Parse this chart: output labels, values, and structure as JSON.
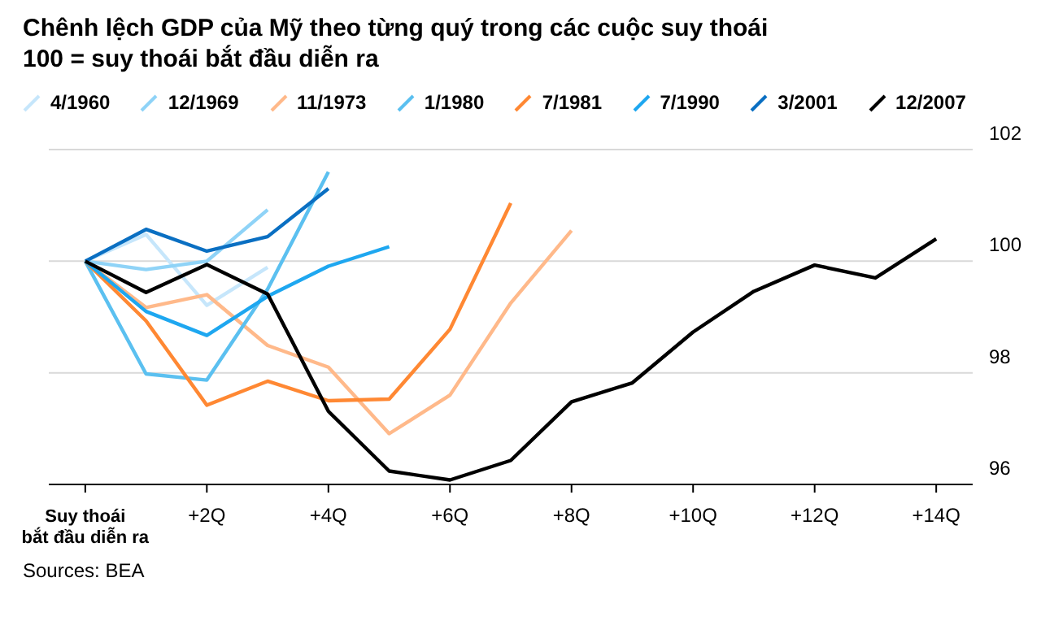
{
  "chart_data": {
    "type": "line",
    "title": "Chênh lệch GDP của Mỹ theo từng quý trong các cuộc suy thoái",
    "subtitle": "100 = suy thoái bắt đầu diễn ra",
    "annotations": [
      "Sources: BEA"
    ],
    "xlim": [
      -0.6,
      14.6
    ],
    "xticks": [
      {
        "value": 0,
        "label": "Suy thoái\nbắt đầu diễn ra"
      },
      {
        "value": 2,
        "label": "+2Q"
      },
      {
        "value": 4,
        "label": "+4Q"
      },
      {
        "value": 6,
        "label": "+6Q"
      },
      {
        "value": 8,
        "label": "+8Q"
      },
      {
        "value": 10,
        "label": "+10Q"
      },
      {
        "value": 12,
        "label": "+12Q"
      },
      {
        "value": 14,
        "label": "+14Q"
      }
    ],
    "ylim": [
      96,
      102
    ],
    "yticks": [
      96,
      98,
      100,
      102
    ],
    "grid": "y",
    "legend": "top",
    "marker": "none",
    "line_style": "solid",
    "series": [
      {
        "name": "4/1960",
        "color": "#c6e6fb",
        "x": [
          0,
          1,
          2,
          3
        ],
        "values": [
          100,
          100.48,
          99.21,
          99.89
        ]
      },
      {
        "name": "12/1969",
        "color": "#8fd3f7",
        "x": [
          0,
          1,
          2,
          3
        ],
        "values": [
          100,
          99.85,
          100,
          100.92
        ]
      },
      {
        "name": "11/1973",
        "color": "#ffb98a",
        "x": [
          0,
          1,
          2,
          3,
          4,
          5,
          6,
          7,
          8
        ],
        "values": [
          100,
          99.17,
          99.4,
          98.49,
          98.1,
          96.91,
          97.6,
          99.25,
          100.55
        ]
      },
      {
        "name": "1/1980",
        "color": "#5bc0f0",
        "x": [
          0,
          1,
          2,
          3,
          4
        ],
        "values": [
          100,
          97.98,
          97.87,
          99.5,
          101.6
        ]
      },
      {
        "name": "7/1981",
        "color": "#ff8833",
        "x": [
          0,
          1,
          2,
          3,
          4,
          5,
          6,
          7
        ],
        "values": [
          100,
          98.93,
          97.42,
          97.85,
          97.5,
          97.53,
          98.78,
          101.04
        ]
      },
      {
        "name": "7/1990",
        "color": "#1ea7f0",
        "x": [
          0,
          1,
          2,
          3,
          4,
          5
        ],
        "values": [
          100,
          99.1,
          98.67,
          99.37,
          99.91,
          100.26
        ]
      },
      {
        "name": "3/2001",
        "color": "#0a6fc2",
        "x": [
          0,
          1,
          2,
          3,
          4
        ],
        "values": [
          100,
          100.57,
          100.18,
          100.44,
          101.3
        ]
      },
      {
        "name": "12/2007",
        "color": "#000000",
        "x": [
          0,
          1,
          2,
          3,
          4,
          5,
          6,
          7,
          8,
          9,
          10,
          11,
          12,
          13,
          14
        ],
        "values": [
          100,
          99.44,
          99.94,
          99.41,
          97.31,
          96.24,
          96.08,
          96.43,
          97.48,
          97.82,
          98.73,
          99.46,
          99.93,
          99.7,
          100.4
        ]
      }
    ]
  }
}
